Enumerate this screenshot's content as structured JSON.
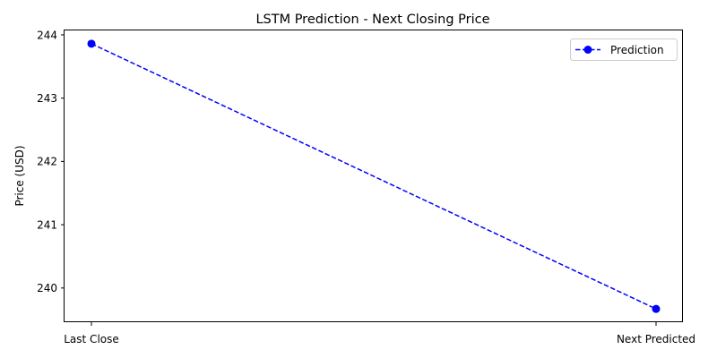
{
  "chart_data": {
    "type": "line",
    "title": "LSTM Prediction - Next Closing Price",
    "xlabel": "",
    "ylabel": "Price (USD)",
    "categories": [
      "Last Close",
      "Next Predicted"
    ],
    "series": [
      {
        "name": "Prediction",
        "values": [
          243.86,
          239.67
        ],
        "color": "#0000ff",
        "line_style": "dashed",
        "marker": "circle"
      }
    ],
    "ylim": [
      239.46,
      244.07
    ],
    "yticks": [
      240,
      241,
      242,
      243,
      244
    ],
    "grid": false,
    "legend_position": "top-right"
  }
}
